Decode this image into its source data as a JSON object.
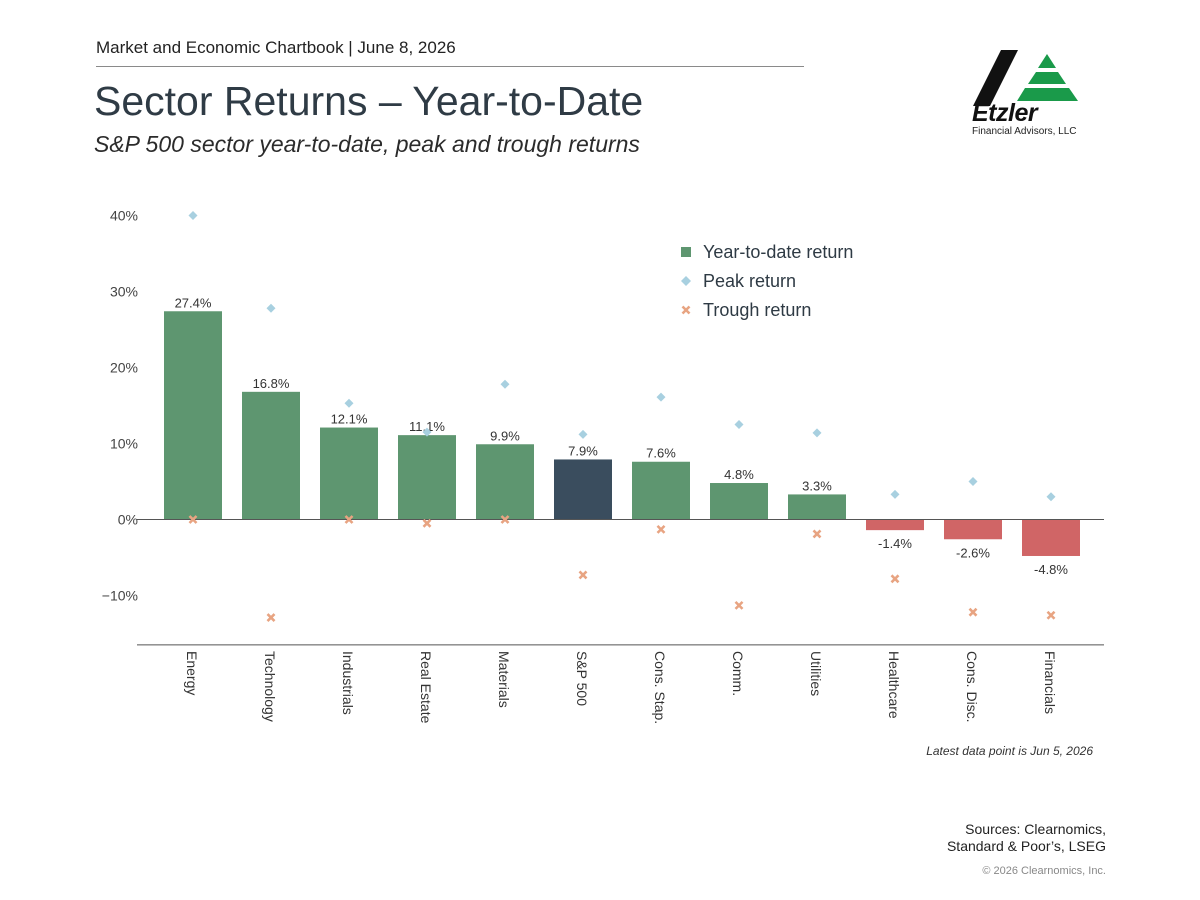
{
  "header": {
    "chartbook": "Market and Economic Chartbook | June 8, 2026",
    "title": "Sector Returns – Year-to-Date",
    "subtitle": "S&P 500 sector year-to-date, peak and trough returns"
  },
  "logo": {
    "name": "Etzler",
    "subtitle": "Financial Advisors, LLC"
  },
  "colors": {
    "positive": "#5e9670",
    "negative": "#d06566",
    "benchmark": "#3a4d5e",
    "peak": "#a8d0e0",
    "trough": "#e8a482"
  },
  "chart_data": {
    "type": "bar",
    "categories": [
      "Energy",
      "Technology",
      "Industrials",
      "Real Estate",
      "Materials",
      "S&P 500",
      "Cons. Stap.",
      "Comm.",
      "Utilities",
      "Healthcare",
      "Cons. Disc.",
      "Financials"
    ],
    "series": [
      {
        "name": "Year-to-date return",
        "type": "bar",
        "values": [
          27.4,
          16.8,
          12.1,
          11.1,
          9.9,
          7.9,
          7.6,
          4.8,
          3.3,
          -1.4,
          -2.6,
          -4.8
        ]
      },
      {
        "name": "Peak return",
        "type": "scatter",
        "marker": "diamond",
        "values": [
          40.0,
          27.8,
          15.3,
          11.5,
          17.8,
          11.2,
          16.1,
          12.5,
          11.4,
          3.3,
          5.0,
          3.0
        ]
      },
      {
        "name": "Trough return",
        "type": "scatter",
        "marker": "x",
        "values": [
          0.0,
          -12.9,
          0.0,
          -0.5,
          0.0,
          -7.3,
          -1.3,
          -11.3,
          -1.9,
          -7.8,
          -12.2,
          -12.6
        ]
      }
    ],
    "value_labels": [
      "27.4%",
      "16.8%",
      "12.1%",
      "11.1%",
      "9.9%",
      "7.9%",
      "7.6%",
      "4.8%",
      "3.3%",
      "-1.4%",
      "-2.6%",
      "-4.8%"
    ],
    "benchmark_category": "S&P 500",
    "yticks": [
      40,
      30,
      20,
      10,
      0,
      -10
    ],
    "ytick_labels": [
      "40%",
      "30%",
      "20%",
      "10%",
      "0%",
      "−10%"
    ],
    "ylim": [
      -16.5,
      41
    ],
    "legend_position": "top-right",
    "grid": false,
    "note": "Latest data point is Jun 5, 2026"
  },
  "footer": {
    "sources": "Sources: Clearnomics, Standard & Poor’s, LSEG",
    "copyright": "© 2026 Clearnomics, Inc."
  }
}
